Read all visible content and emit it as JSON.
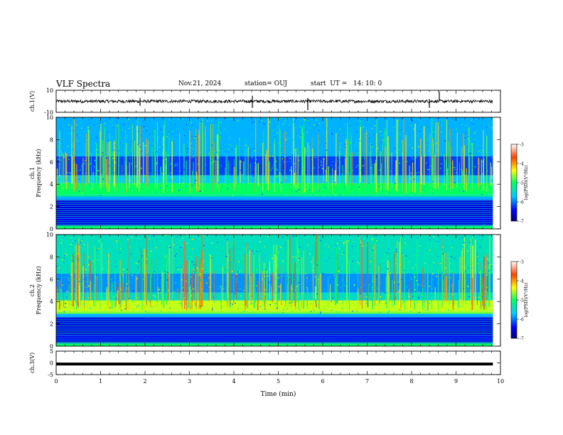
{
  "header": {
    "title": "VLF Spectra",
    "date": "Nov.21, 2024",
    "station": "station= OUJ",
    "start": "start  UT =   14: 10: 0"
  },
  "chart_data": [
    {
      "type": "line",
      "name": "ch1-waveform",
      "ylabel": "ch.1(V)",
      "ylim": [
        -10,
        10
      ],
      "yticks": [
        "10",
        "-10"
      ],
      "xlim": [
        0,
        10
      ],
      "trace_end_min": 9.83,
      "baseline": 0
    },
    {
      "type": "heatmap",
      "name": "ch1-spectrogram",
      "ylabel": "ch.1\nFrequency  (kHz)",
      "ylim": [
        0,
        10
      ],
      "yticks": [
        "0",
        "2",
        "4",
        "6",
        "8",
        "10"
      ],
      "xlim": [
        0,
        10
      ],
      "data_end_min": 9.83,
      "colorbar": {
        "label": "log(PSD)(V²/Hz)",
        "range": [
          -7,
          -3
        ],
        "ticks": [
          "-3",
          "-4",
          "-5",
          "-6",
          "-7"
        ]
      }
    },
    {
      "type": "heatmap",
      "name": "ch2-spectrogram",
      "ylabel": "ch.2\nFrequency  (kHz)",
      "ylim": [
        0,
        10
      ],
      "yticks": [
        "0",
        "2",
        "4",
        "6",
        "8",
        "10"
      ],
      "xlim": [
        0,
        10
      ],
      "data_end_min": 9.83,
      "colorbar": {
        "label": "log(PSD)(V²/Hz)",
        "range": [
          -7,
          -3
        ],
        "ticks": [
          "-3",
          "-4",
          "-5",
          "-6",
          "-7"
        ]
      }
    },
    {
      "type": "line",
      "name": "ch3-waveform",
      "ylabel": "ch.3(V)",
      "ylim": [
        -5,
        5
      ],
      "yticks": [
        "5",
        "0",
        "-5"
      ],
      "xlim": [
        0,
        10
      ],
      "trace_end_min": 9.83,
      "baseline": -0.5,
      "xlabel": "Time  (min)",
      "xticks": [
        "0",
        "1",
        "2",
        "3",
        "4",
        "5",
        "6",
        "7",
        "8",
        "9",
        "10"
      ]
    }
  ]
}
